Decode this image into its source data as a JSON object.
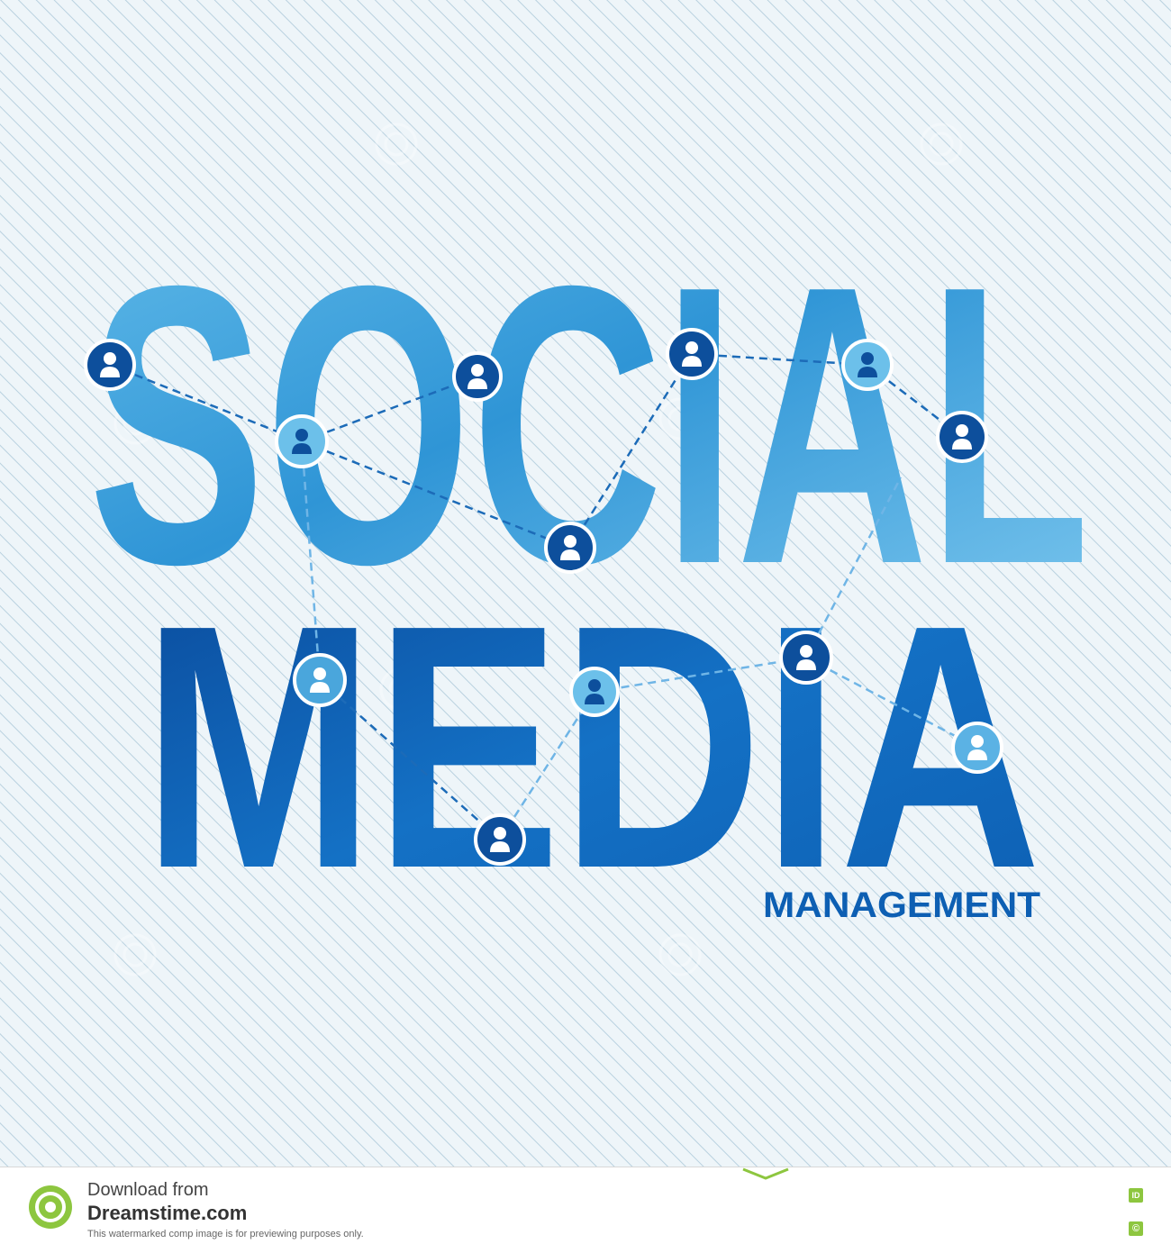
{
  "headline": {
    "line1": "SOCIAL",
    "line2": "MEDIA",
    "subtitle": "MANAGEMENT"
  },
  "colors": {
    "background": "#eef5f9",
    "stripe": "#b9d1df",
    "social_fill": "#4aa6dc",
    "media_fill": "#0d5fb3",
    "subtitle": "#0d5fb3",
    "node_dark": "#0d4f9c",
    "node_light": "#5bb2e4",
    "network_line": "#1c6bb8"
  },
  "network": {
    "node_icon": "user-icon"
  },
  "watermark": {
    "text": "dreamstime",
    "logo_icon": "dreamstime-spiral-icon"
  },
  "footer": {
    "download_from": "Download from",
    "site": "Dreamstime.com",
    "note": "This watermarked comp image is for previewing purposes only.",
    "id_badge": "ID",
    "copyright_badge": "©"
  }
}
